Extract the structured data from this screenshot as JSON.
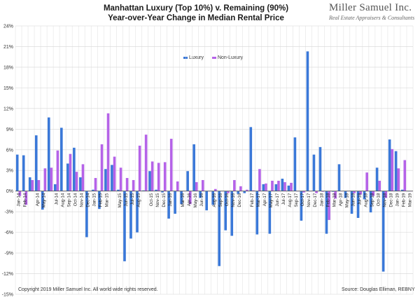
{
  "header": {
    "title_line1": "Manhattan Luxury (Top 10%) v. Remaining (90%)",
    "title_line2": "Year-over-Year Change in Median Rental Price"
  },
  "logo": {
    "name": "Miller Samuel Inc.",
    "tagline": "Real Estate Appraisers & Consultants"
  },
  "footer": {
    "copyright": "Copyright 2019 Miller Samuel Inc.  All world wide rights reserved.",
    "source": "Source: Douglas Elliman, REBNY"
  },
  "colors": {
    "luxury": "#3a78d8",
    "non_luxury": "#b563e8",
    "grid": "#d6d6d6"
  },
  "chart_data": {
    "type": "bar",
    "title": "Manhattan Luxury (Top 10%) v. Remaining (90%) Year-over-Year Change in Median Rental Price",
    "xlabel": "",
    "ylabel": "",
    "ylim": [
      -15,
      24
    ],
    "y_ticks": [
      24,
      21,
      18,
      15,
      12,
      9,
      6,
      3,
      0,
      -3,
      -6,
      -9,
      -12,
      -15
    ],
    "y_tick_labels": [
      "24%",
      "21%",
      "18%",
      "15%",
      "12%",
      "9%",
      "6%",
      "3%",
      "0%",
      "-3%",
      "-6%",
      "-9%",
      "-12%",
      "-15%"
    ],
    "grid": true,
    "legend_position": "top-center",
    "categories": [
      "Jan-14",
      "Feb-14",
      "Mar-14",
      "Apr-14",
      "May-14",
      "Jun-14",
      "Jul-14",
      "Aug-14",
      "Sep-14",
      "Oct-14",
      "Nov-14",
      "Dec-14",
      "Jan-15",
      "Feb-15",
      "Mar-15",
      "Apr-15",
      "May-15",
      "Jun-15",
      "Jul-15",
      "Aug-15",
      "Sep-15",
      "Oct-15",
      "Nov-15",
      "Dec-15",
      "Jan-16",
      "Feb-16",
      "Mar-16",
      "Apr-16",
      "May-16",
      "Jun-16",
      "Jul-16",
      "Aug-16",
      "Sep-16",
      "Oct-16",
      "Nov-16",
      "Dec-16",
      "Jan-17",
      "Feb-17",
      "Mar-17",
      "Apr-17",
      "May-17",
      "Jun-17",
      "Jul-17",
      "Aug-17",
      "Sep-17",
      "Oct-17",
      "Nov-17",
      "Dec-17",
      "Jan-18",
      "Feb-18",
      "Mar-18",
      "Apr-18",
      "May-18",
      "Jun-18",
      "Jul-18",
      "Aug-18",
      "Sep-18",
      "Oct-18",
      "Nov-18",
      "Dec-18",
      "Jan-19",
      "Feb-19",
      "Mar-19"
    ],
    "x_tick_labels": [
      "Jan-14",
      "Feb-14",
      "Apr-14",
      "May-14",
      "Jul-14",
      "Aug-14",
      "Sep-14",
      "Oct-14",
      "Nov-14",
      "Dec-14",
      "Jan-15",
      "Feb-15",
      "Mar-15",
      "May-15",
      "Jun-15",
      "Jul-15",
      "Aug-15",
      "Oct-15",
      "Nov-15",
      "Dec-15",
      "Jan-16",
      "Mar-16",
      "Apr-16",
      "May-16",
      "Jun-16",
      "Aug-16",
      "Sep-16",
      "Oct-16",
      "Nov-16",
      "Dec-16",
      "Feb-17",
      "Mar-17",
      "Apr-17",
      "May-17",
      "Jun-17",
      "Jul-17",
      "Aug-17",
      "Sep-17",
      "Oct-17",
      "Nov-17",
      "Dec-17",
      "Jan-18",
      "Feb-18",
      "Mar-18",
      "Apr-18",
      "May-18",
      "Jun-18",
      "Jul-18",
      "Aug-18",
      "Sep-18",
      "Oct-18",
      "Nov-18",
      "Dec-18",
      "Jan-19",
      "Feb-19",
      "Mar-19"
    ],
    "series": [
      {
        "name": "Luxury",
        "values": [
          5.3,
          5.2,
          2.0,
          8.1,
          -2.7,
          10.7,
          1.0,
          9.2,
          4.0,
          6.3,
          2.0,
          -6.7,
          0.2,
          -2.6,
          3.2,
          3.8,
          0.2,
          -10.2,
          -6.9,
          -6.0,
          0.1,
          2.9,
          0.2,
          -0.2,
          -4.0,
          -3.3,
          -1.9,
          2.9,
          6.8,
          -1.0,
          -2.8,
          -2.0,
          -10.9,
          -5.7,
          -6.5,
          -0.4,
          -0.3,
          9.3,
          -6.3,
          1.0,
          -6.2,
          1.0,
          1.8,
          0.8,
          7.8,
          -4.3,
          20.3,
          5.3,
          6.4,
          -6.2,
          -0.1,
          3.9,
          -1.0,
          -3.3,
          -3.9,
          -1.2,
          -3.1,
          3.4,
          -11.7,
          7.5,
          5.8,
          0.2,
          0.0
        ]
      },
      {
        "name": "Non-Luxury",
        "values": [
          -0.7,
          -2.0,
          1.6,
          1.6,
          3.3,
          3.4,
          5.9,
          0.0,
          5.4,
          2.8,
          3.9,
          0.0,
          1.9,
          6.8,
          11.3,
          5.0,
          3.4,
          1.9,
          1.6,
          6.6,
          8.2,
          4.3,
          4.1,
          4.2,
          7.6,
          1.4,
          0.0,
          -1.9,
          1.3,
          1.6,
          0.0,
          0.3,
          0.0,
          -0.3,
          1.6,
          0.7,
          0.2,
          0.1,
          3.2,
          1.1,
          1.5,
          1.5,
          1.3,
          1.2,
          0.0,
          -0.2,
          0.0,
          -0.3,
          -0.1,
          -4.2,
          -1.1,
          0.0,
          0.0,
          -0.3,
          -0.5,
          2.7,
          -0.7,
          1.5,
          -1.0,
          6.1,
          3.3,
          4.5,
          0.0
        ]
      }
    ]
  }
}
